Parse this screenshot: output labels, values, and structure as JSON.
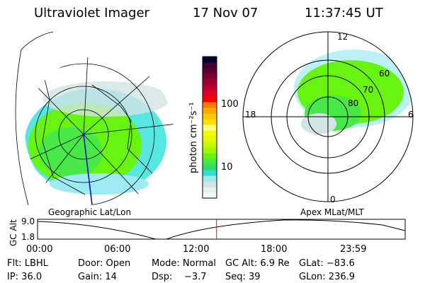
{
  "header": {
    "instrument": "Ultraviolet Imager",
    "date": "17 Nov 07",
    "time": "11:37:45 UT"
  },
  "colorbar": {
    "label": "photon cm⁻²s⁻¹",
    "ticks": [
      "100",
      "10"
    ],
    "scale": "log",
    "colors": [
      "#f4f8f4",
      "#e6f2ee",
      "#d2e4e4",
      "#9eeaf2",
      "#2ee0d8",
      "#30dc6c",
      "#48e848",
      "#68f410",
      "#a0f800",
      "#c8f800",
      "#e8f800",
      "#f8f800",
      "#fcfc80",
      "#fce000",
      "#fcc800",
      "#fca800",
      "#fc8000",
      "#fc0000",
      "#e00020",
      "#c00030",
      "#a00030",
      "#800030",
      "#600030",
      "#400030",
      "#000030"
    ]
  },
  "panels": {
    "left_label": "Geographic Lat/Lon",
    "right_label": "Apex MLat/MLT",
    "mlt_labels": {
      "top": "12",
      "bottom": "0",
      "left": "18",
      "right": "6"
    },
    "mlat_labels": [
      "60",
      "70",
      "80"
    ]
  },
  "altplot": {
    "ylabel": "GC Alt",
    "yticks": [
      "9.0",
      "1.8"
    ],
    "xticks": [
      "00:00",
      "06:00",
      "12:00",
      "18:00",
      "23:59"
    ],
    "current_time_fraction": 0.487,
    "marker_color": "#ff0000"
  },
  "info": {
    "row1": [
      "Flt: LBHL",
      "Door: Open",
      "Mode: Normal",
      "GC Alt: 6.9 Re",
      "GLat: −83.6"
    ],
    "row2": [
      "IP: 36.0",
      "Gain: 14",
      "Dsp:    −3.7",
      "Seq: 39",
      "GLon: 236.9"
    ]
  }
}
